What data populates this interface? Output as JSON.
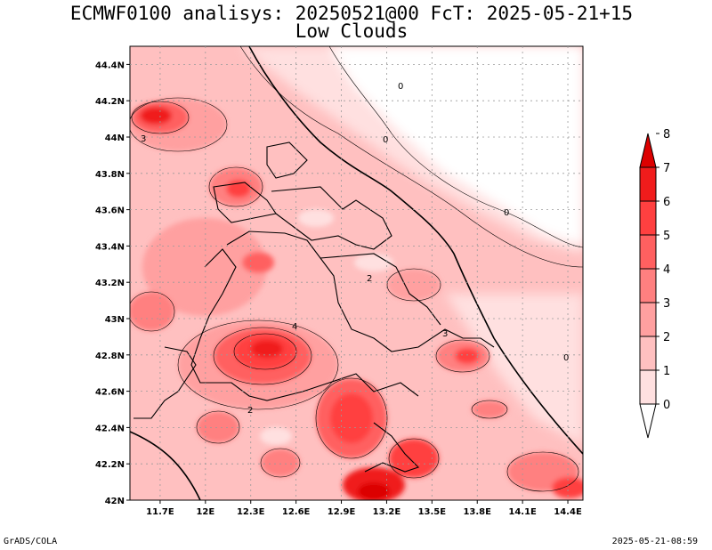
{
  "title_line1": "ECMWF0100 analisys: 20250521@00 FcT: 2025-05-21+15",
  "title_line2": "Low Clouds",
  "footer_left": "GrADS/COLA",
  "footer_right": "2025-05-21-08:59",
  "map": {
    "lat_labels": [
      "44.4N",
      "44.2N",
      "44N",
      "43.8N",
      "43.6N",
      "43.4N",
      "43.2N",
      "43N",
      "42.8N",
      "42.6N",
      "42.4N",
      "42.2N",
      "42N"
    ],
    "lon_labels": [
      "11.7E",
      "12E",
      "12.3E",
      "12.6E",
      "12.9E",
      "13.2E",
      "13.5E",
      "13.8E",
      "14.1E",
      "14.4E"
    ],
    "contour_labels": [
      "0",
      "0",
      "0",
      "0",
      "3",
      "2",
      "4",
      "2",
      "3"
    ]
  },
  "colorbar": {
    "labels": [
      "0",
      "1",
      "2",
      "3",
      "4",
      "5",
      "6",
      "7",
      "8"
    ],
    "colors": [
      "#ffffff",
      "#ffe0e0",
      "#ffc0c0",
      "#ffa0a0",
      "#ff8080",
      "#ff6060",
      "#ff4040",
      "#f01c1c",
      "#dc0000"
    ]
  },
  "chart_data": {
    "type": "heatmap",
    "title": "ECMWF0100 analisys: 20250521@00 FcT: 2025-05-21+15",
    "subtitle": "Low Clouds",
    "xlabel": "",
    "ylabel": "",
    "xlim": [
      11.5,
      14.5
    ],
    "ylim": [
      42.0,
      44.5
    ],
    "x_ticks": [
      11.7,
      12.0,
      12.3,
      12.6,
      12.9,
      13.2,
      13.5,
      13.8,
      14.1,
      14.4
    ],
    "y_ticks": [
      42.0,
      42.2,
      42.4,
      42.6,
      42.8,
      43.0,
      43.2,
      43.4,
      43.6,
      43.8,
      44.0,
      44.2,
      44.4
    ],
    "levels": [
      0,
      1,
      2,
      3,
      4,
      5,
      6,
      7,
      8
    ],
    "grid": true,
    "features": [
      {
        "lon": 11.6,
        "lat": 44.15,
        "value": 6
      },
      {
        "lon": 12.25,
        "lat": 43.7,
        "value": 6
      },
      {
        "lon": 12.45,
        "lat": 42.82,
        "value": 7
      },
      {
        "lon": 12.9,
        "lat": 42.45,
        "value": 6
      },
      {
        "lon": 13.25,
        "lat": 42.05,
        "value": 8
      },
      {
        "lon": 13.4,
        "lat": 42.2,
        "value": 6
      },
      {
        "lon": 13.8,
        "lat": 42.8,
        "value": 5
      },
      {
        "lon": 14.45,
        "lat": 42.1,
        "value": 5
      },
      {
        "lon": 14.0,
        "lat": 42.5,
        "value": 4
      },
      {
        "lon": 12.4,
        "lat": 43.3,
        "value": 4
      },
      {
        "lon": 11.6,
        "lat": 43.0,
        "value": 4
      },
      {
        "lon": 13.4,
        "lat": 43.2,
        "value": 3
      },
      {
        "lon": 13.9,
        "lat": 44.35,
        "value": 0
      },
      {
        "lon": 14.3,
        "lat": 43.45,
        "value": 0
      }
    ]
  }
}
